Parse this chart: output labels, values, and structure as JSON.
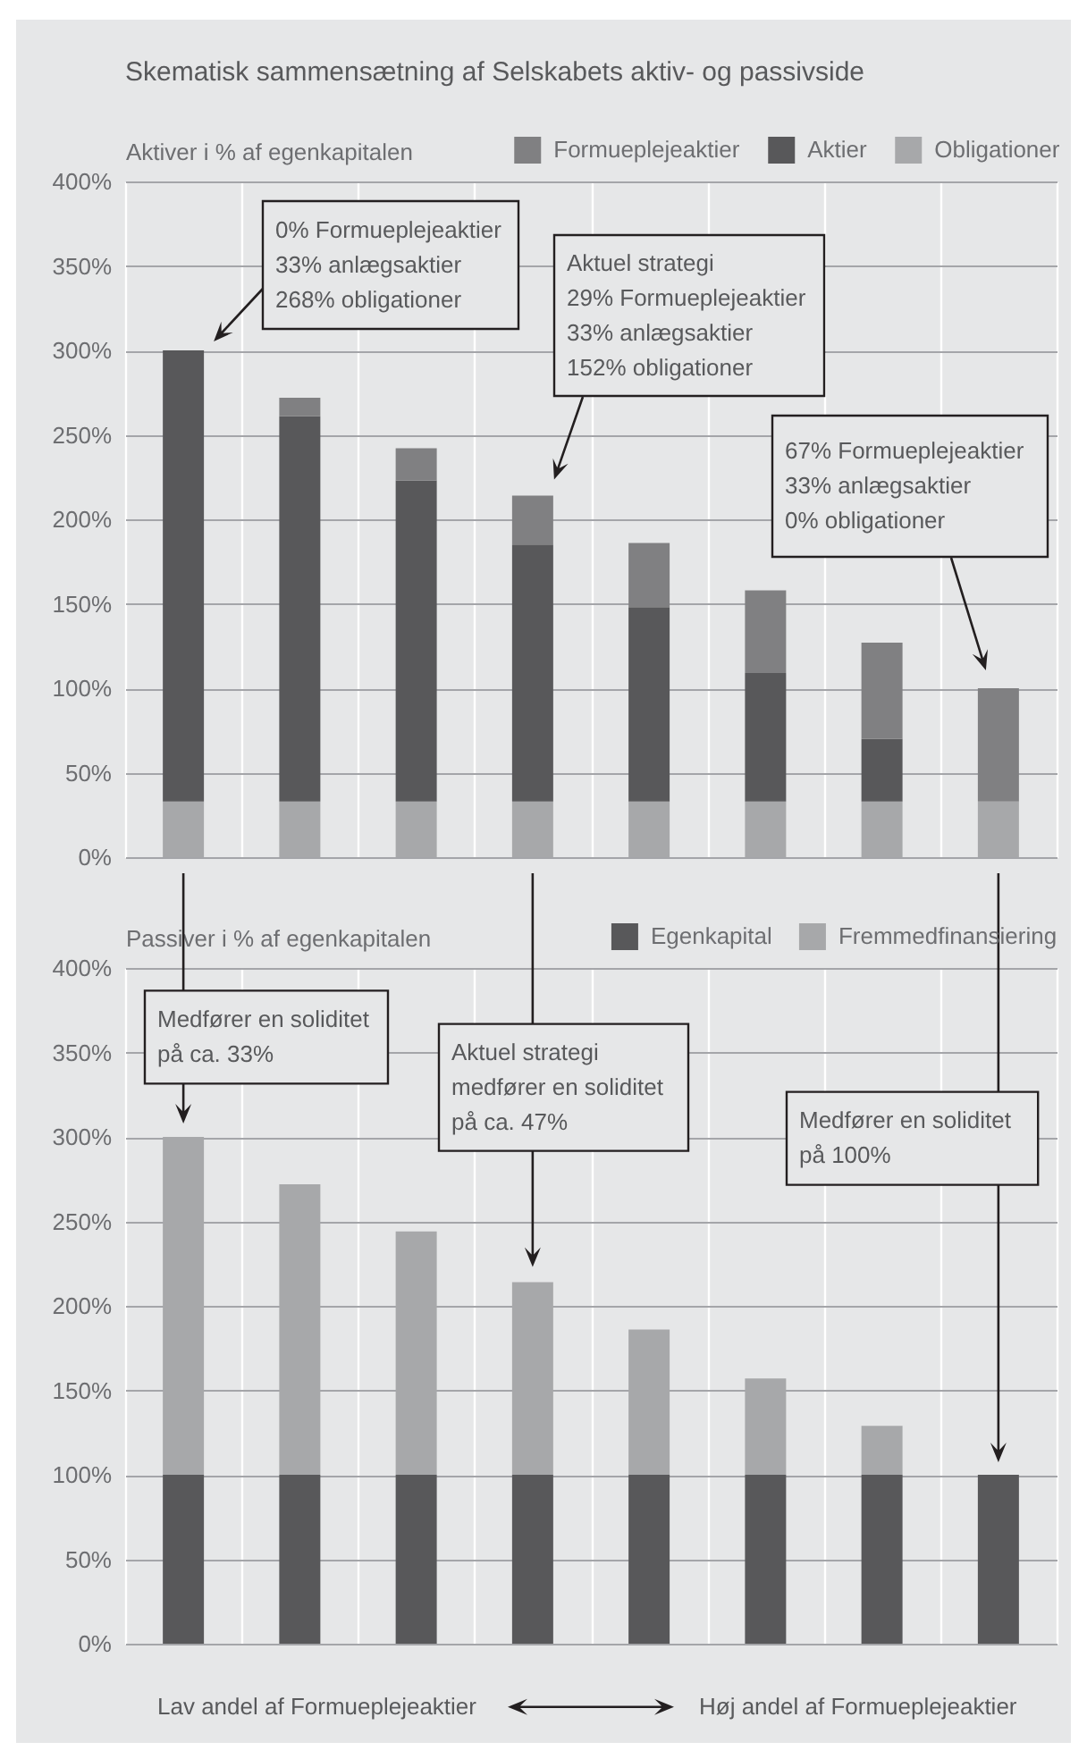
{
  "chart_data": [
    {
      "type": "bar",
      "title": "Skematisk sammensætning af Selskabets aktiv- og passivside",
      "ylabel": "Aktiver i % af egenkapitalen",
      "categories": [
        null,
        null,
        null,
        null,
        null,
        null,
        null,
        null
      ],
      "stacked": true,
      "series": [
        {
          "name": "Obligationer",
          "color": "#a7a8aa",
          "values": [
            33,
            33,
            33,
            33,
            33,
            33,
            33,
            33
          ]
        },
        {
          "name": "Aktier",
          "color": "#58585a",
          "values": [
            267,
            228,
            190,
            152,
            115,
            76,
            37,
            0
          ]
        },
        {
          "name": "Formueplejeaktier",
          "color": "#808082",
          "values": [
            0,
            11,
            19,
            29,
            38,
            49,
            57,
            67
          ]
        }
      ],
      "ylim": [
        0,
        400
      ],
      "yticks": [
        {
          "value": 0,
          "label": "0%"
        },
        {
          "value": 50,
          "label": "50%"
        },
        {
          "value": 100,
          "label": "100%"
        },
        {
          "value": 150,
          "label": "150%"
        },
        {
          "value": 200,
          "label": "200%"
        },
        {
          "value": 250,
          "label": "250%"
        },
        {
          "value": 300,
          "label": "300%"
        },
        {
          "value": 350,
          "label": "350%"
        },
        {
          "value": 400,
          "label": "400%"
        }
      ],
      "grid": true,
      "legend": "top right",
      "tick_labels": "y",
      "annotations": [
        "0% Formueplejeaktier\n33% anlægsaktier\n268% obligationer",
        "Aktuel strategi\n29% Formueplejeaktier\n33% anlægsaktier\n152% obligationer",
        "67% Formueplejeaktier\n33% anlægsaktier\n0% obligationer"
      ]
    },
    {
      "type": "bar",
      "ylabel": "Passiver i % af egenkapitalen",
      "categories": [
        null,
        null,
        null,
        null,
        null,
        null,
        null,
        null
      ],
      "stacked": true,
      "series": [
        {
          "name": "Egenkapital",
          "color": "#58585a",
          "values": [
            100,
            100,
            100,
            100,
            100,
            100,
            100,
            100
          ]
        },
        {
          "name": "Fremmedfinansiering",
          "color": "#a7a8aa",
          "values": [
            200,
            172,
            144,
            114,
            86,
            57,
            29,
            0
          ]
        }
      ],
      "ylim": [
        0,
        400
      ],
      "yticks": [
        {
          "value": 0,
          "label": "0%"
        },
        {
          "value": 50,
          "label": "50%"
        },
        {
          "value": 100,
          "label": "100%"
        },
        {
          "value": 150,
          "label": "150%"
        },
        {
          "value": 200,
          "label": "200%"
        },
        {
          "value": 250,
          "label": "250%"
        },
        {
          "value": 300,
          "label": "300%"
        },
        {
          "value": 350,
          "label": "350%"
        },
        {
          "value": 400,
          "label": "400%"
        }
      ],
      "grid": true,
      "legend": "top right",
      "tick_labels": "y",
      "annotations": [
        "Medfører en soliditet\npå ca. 33%",
        "Aktuel strategi\nmedfører en soliditet\npå ca. 47%",
        "Medfører en soliditet\npå 100%",
        "Lav andel af Formueplejeaktier",
        "Høj andel af Formueplejeaktier"
      ]
    }
  ]
}
